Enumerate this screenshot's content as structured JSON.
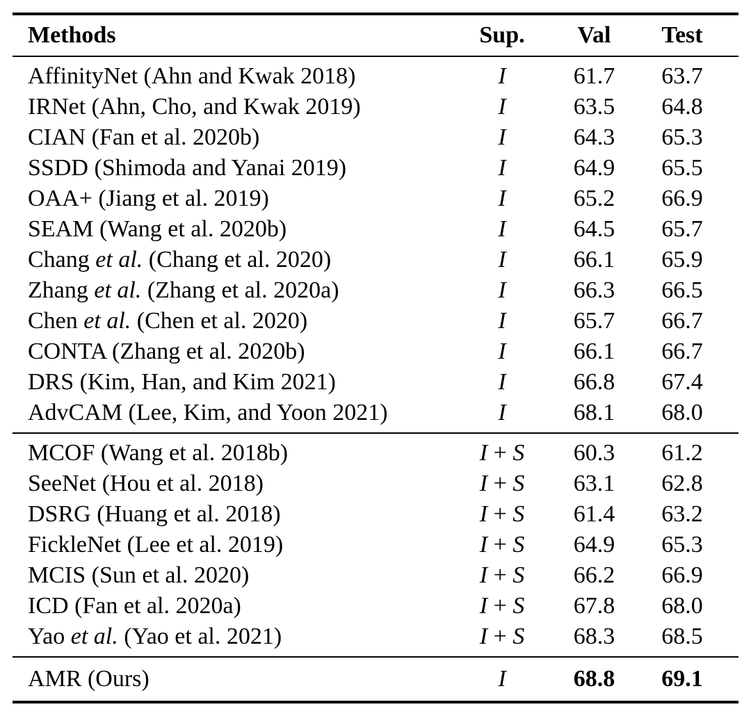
{
  "table": {
    "headers": {
      "methods": "Methods",
      "sup": "Sup.",
      "val": "Val",
      "test": "Test"
    },
    "colors": {
      "text": "#000000",
      "background": "#ffffff",
      "rule": "#000000"
    },
    "sections": [
      {
        "name": "image-level-supervision",
        "rows": [
          {
            "method_pre": "AffinityNet",
            "method_italic": "",
            "method_post": " (Ahn and Kwak 2018)",
            "sup": "I",
            "val": "61.7",
            "test": "63.7"
          },
          {
            "method_pre": "IRNet",
            "method_italic": "",
            "method_post": " (Ahn, Cho, and Kwak 2019)",
            "sup": "I",
            "val": "63.5",
            "test": "64.8"
          },
          {
            "method_pre": "CIAN",
            "method_italic": "",
            "method_post": " (Fan et al. 2020b)",
            "sup": "I",
            "val": "64.3",
            "test": "65.3"
          },
          {
            "method_pre": "SSDD",
            "method_italic": "",
            "method_post": " (Shimoda and Yanai 2019)",
            "sup": "I",
            "val": "64.9",
            "test": "65.5"
          },
          {
            "method_pre": "OAA+",
            "method_italic": "",
            "method_post": " (Jiang et al. 2019)",
            "sup": "I",
            "val": "65.2",
            "test": "66.9"
          },
          {
            "method_pre": "SEAM",
            "method_italic": "",
            "method_post": " (Wang et al. 2020b)",
            "sup": "I",
            "val": "64.5",
            "test": "65.7"
          },
          {
            "method_pre": "Chang ",
            "method_italic": "et al.",
            "method_post": " (Chang et al. 2020)",
            "sup": "I",
            "val": "66.1",
            "test": "65.9"
          },
          {
            "method_pre": "Zhang ",
            "method_italic": "et al.",
            "method_post": " (Zhang et al. 2020a)",
            "sup": "I",
            "val": "66.3",
            "test": "66.5"
          },
          {
            "method_pre": "Chen ",
            "method_italic": "et al.",
            "method_post": " (Chen et al. 2020)",
            "sup": "I",
            "val": "65.7",
            "test": "66.7"
          },
          {
            "method_pre": "CONTA",
            "method_italic": "",
            "method_post": " (Zhang et al. 2020b)",
            "sup": "I",
            "val": "66.1",
            "test": "66.7"
          },
          {
            "method_pre": "DRS",
            "method_italic": "",
            "method_post": " (Kim, Han, and Kim 2021)",
            "sup": "I",
            "val": "66.8",
            "test": "67.4"
          },
          {
            "method_pre": "AdvCAM",
            "method_italic": "",
            "method_post": " (Lee, Kim, and Yoon 2021)",
            "sup": "I",
            "val": "68.1",
            "test": "68.0"
          }
        ]
      },
      {
        "name": "image-plus-saliency-supervision",
        "rows": [
          {
            "method_pre": "MCOF",
            "method_italic": "",
            "method_post": " (Wang et al. 2018b)",
            "sup": "I + S",
            "val": "60.3",
            "test": "61.2"
          },
          {
            "method_pre": "SeeNet",
            "method_italic": "",
            "method_post": " (Hou et al. 2018)",
            "sup": "I + S",
            "val": "63.1",
            "test": "62.8"
          },
          {
            "method_pre": "DSRG",
            "method_italic": "",
            "method_post": " (Huang et al. 2018)",
            "sup": "I + S",
            "val": "61.4",
            "test": "63.2"
          },
          {
            "method_pre": "FickleNet",
            "method_italic": "",
            "method_post": " (Lee et al. 2019)",
            "sup": "I + S",
            "val": "64.9",
            "test": "65.3"
          },
          {
            "method_pre": "MCIS",
            "method_italic": "",
            "method_post": " (Sun et al. 2020)",
            "sup": "I + S",
            "val": "66.2",
            "test": "66.9"
          },
          {
            "method_pre": "ICD",
            "method_italic": "",
            "method_post": " (Fan et al. 2020a)",
            "sup": "I + S",
            "val": "67.8",
            "test": "68.0"
          },
          {
            "method_pre": "Yao ",
            "method_italic": "et al.",
            "method_post": " (Yao et al. 2021)",
            "sup": "I + S",
            "val": "68.3",
            "test": "68.5"
          }
        ]
      },
      {
        "name": "ours",
        "rows": [
          {
            "method_pre": "AMR (Ours)",
            "method_italic": "",
            "method_post": "",
            "sup": "I",
            "val": "68.8",
            "test": "69.1",
            "bold_values": true
          }
        ]
      }
    ]
  }
}
